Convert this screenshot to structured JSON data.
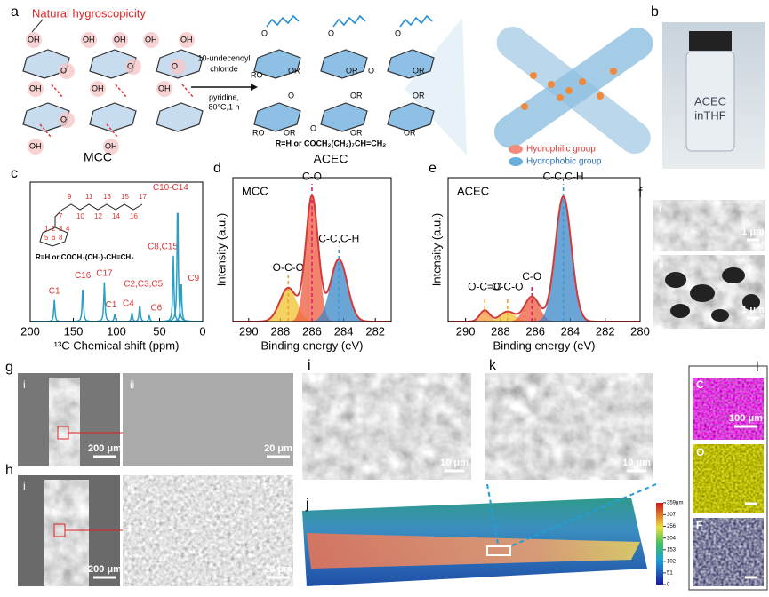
{
  "panel_labels": [
    "a",
    "b",
    "c",
    "d",
    "e",
    "f",
    "g",
    "h",
    "i",
    "j",
    "k",
    "l"
  ],
  "a": {
    "annotation": "Natural hygroscopicity",
    "reagent": [
      "10-undecenoyl",
      "chloride",
      "pyridine,",
      "80°C,1 h"
    ],
    "mcc_label": "MCC",
    "acec_label": "ACEC",
    "r_group": "R=H or COCH₂(CH₂)₇CH=CH₂",
    "mcc_groups": [
      "OH",
      "OH",
      "OH",
      "O",
      "OH",
      "O",
      "OH",
      "O",
      "OH",
      "OH",
      "OH",
      "O",
      "OH",
      "OH"
    ],
    "acec_groups": [
      "O",
      "O",
      "O",
      "OR",
      "OR",
      "O",
      "OR",
      "RO",
      "O",
      "OR",
      "OR",
      "OR",
      "O",
      "RO",
      "OR",
      "OR"
    ],
    "legend": [
      "Hydrophilic group",
      "Hydrophobic group"
    ]
  },
  "b": {
    "vial_text": [
      "ACEC",
      "inTHF"
    ]
  },
  "c": {
    "type": "nmr",
    "xlabel": "¹³C Chemical shift (ppm)",
    "xlim": [
      200,
      0
    ],
    "xticks": [
      200,
      150,
      100,
      50,
      0
    ],
    "ylim": [
      0,
      1.1
    ],
    "color": "#2a9fc4",
    "chain_numbers": [
      "7",
      "9",
      "10",
      "11",
      "12",
      "13",
      "14",
      "15",
      "16",
      "17"
    ],
    "ring_numbers": [
      "1",
      "2",
      "3",
      "4",
      "5",
      "6",
      "8"
    ],
    "r_group": "R=H or COCH₂(CH₂)₇CH=CH₂",
    "peaks": [
      {
        "label": "C1",
        "ppm": 172,
        "height": 0.17
      },
      {
        "label": "C16",
        "ppm": 139,
        "height": 0.29
      },
      {
        "label": "C17",
        "ppm": 114,
        "height": 0.31
      },
      {
        "label": "C1",
        "ppm": 102,
        "height": 0.06
      },
      {
        "label": "C4",
        "ppm": 82,
        "height": 0.07
      },
      {
        "label": "C2,C3,C5",
        "ppm": 73,
        "height": 0.14
      },
      {
        "label": "C6",
        "ppm": 62,
        "height": 0.05
      },
      {
        "label": "C8,C15",
        "ppm": 34,
        "height": 0.52
      },
      {
        "label": "C10-C14",
        "ppm": 29,
        "height": 1.0
      },
      {
        "label": "C9",
        "ppm": 25,
        "height": 0.34
      }
    ]
  },
  "d": {
    "type": "xps",
    "title": "MCC",
    "xlabel": "Binding energy (eV)",
    "ylabel": "Intensity (a.u.)",
    "xlim": [
      291,
      281
    ],
    "xticks": [
      290,
      288,
      286,
      284,
      282
    ],
    "ylim": [
      0,
      1.15
    ],
    "envelope_color": "#d33a3a",
    "components": [
      {
        "name": "O-C-O",
        "center": 287.5,
        "height": 0.27,
        "width": 0.75,
        "color": "#f2c230"
      },
      {
        "name": "C-O",
        "center": 286,
        "height": 1.0,
        "width": 0.55,
        "color": "#ee5a3c"
      },
      {
        "name": "C-C,C-H",
        "center": 284.3,
        "height": 0.5,
        "width": 0.75,
        "color": "#3a87c8"
      }
    ]
  },
  "e": {
    "type": "xps",
    "title": "ACEC",
    "xlabel": "Binding energy (eV)",
    "ylabel": "Intensity (a.u.)",
    "xlim": [
      291,
      280
    ],
    "xticks": [
      290,
      288,
      286,
      284,
      282,
      280
    ],
    "ylim": [
      0,
      1.15
    ],
    "envelope_color": "#d33a3a",
    "components": [
      {
        "name": "O-C=O",
        "center": 288.9,
        "height": 0.09,
        "width": 0.4,
        "color": "#f39a40"
      },
      {
        "name": "O-C-O",
        "center": 287.6,
        "height": 0.08,
        "width": 0.6,
        "color": "#f2c230"
      },
      {
        "name": "C-O",
        "center": 286.2,
        "height": 0.2,
        "width": 0.6,
        "color": "#ee5a3c"
      },
      {
        "name": "C-C,C-H",
        "center": 284.4,
        "height": 1.0,
        "width": 0.65,
        "color": "#3a87c8"
      }
    ]
  },
  "f": {
    "sub": [
      "i",
      "ii"
    ],
    "scale": [
      "1 μm",
      "1 μm"
    ]
  },
  "g": {
    "sub": [
      "i",
      "ii"
    ],
    "scale": [
      "200 μm",
      "20 μm"
    ]
  },
  "h": {
    "sub": [
      "i",
      "ii"
    ],
    "scale": [
      "200 μm",
      "20 μm"
    ]
  },
  "i": {
    "scale": "10 μm"
  },
  "k": {
    "scale": "10 μm"
  },
  "j": {
    "colorbar": [
      {
        "value": 359,
        "label": "359μm"
      },
      307,
      256,
      204,
      153,
      102,
      51,
      0
    ],
    "clim": [
      0,
      359
    ]
  },
  "l": {
    "elements": [
      "C",
      "O",
      "F"
    ],
    "scale": "100 μm"
  }
}
